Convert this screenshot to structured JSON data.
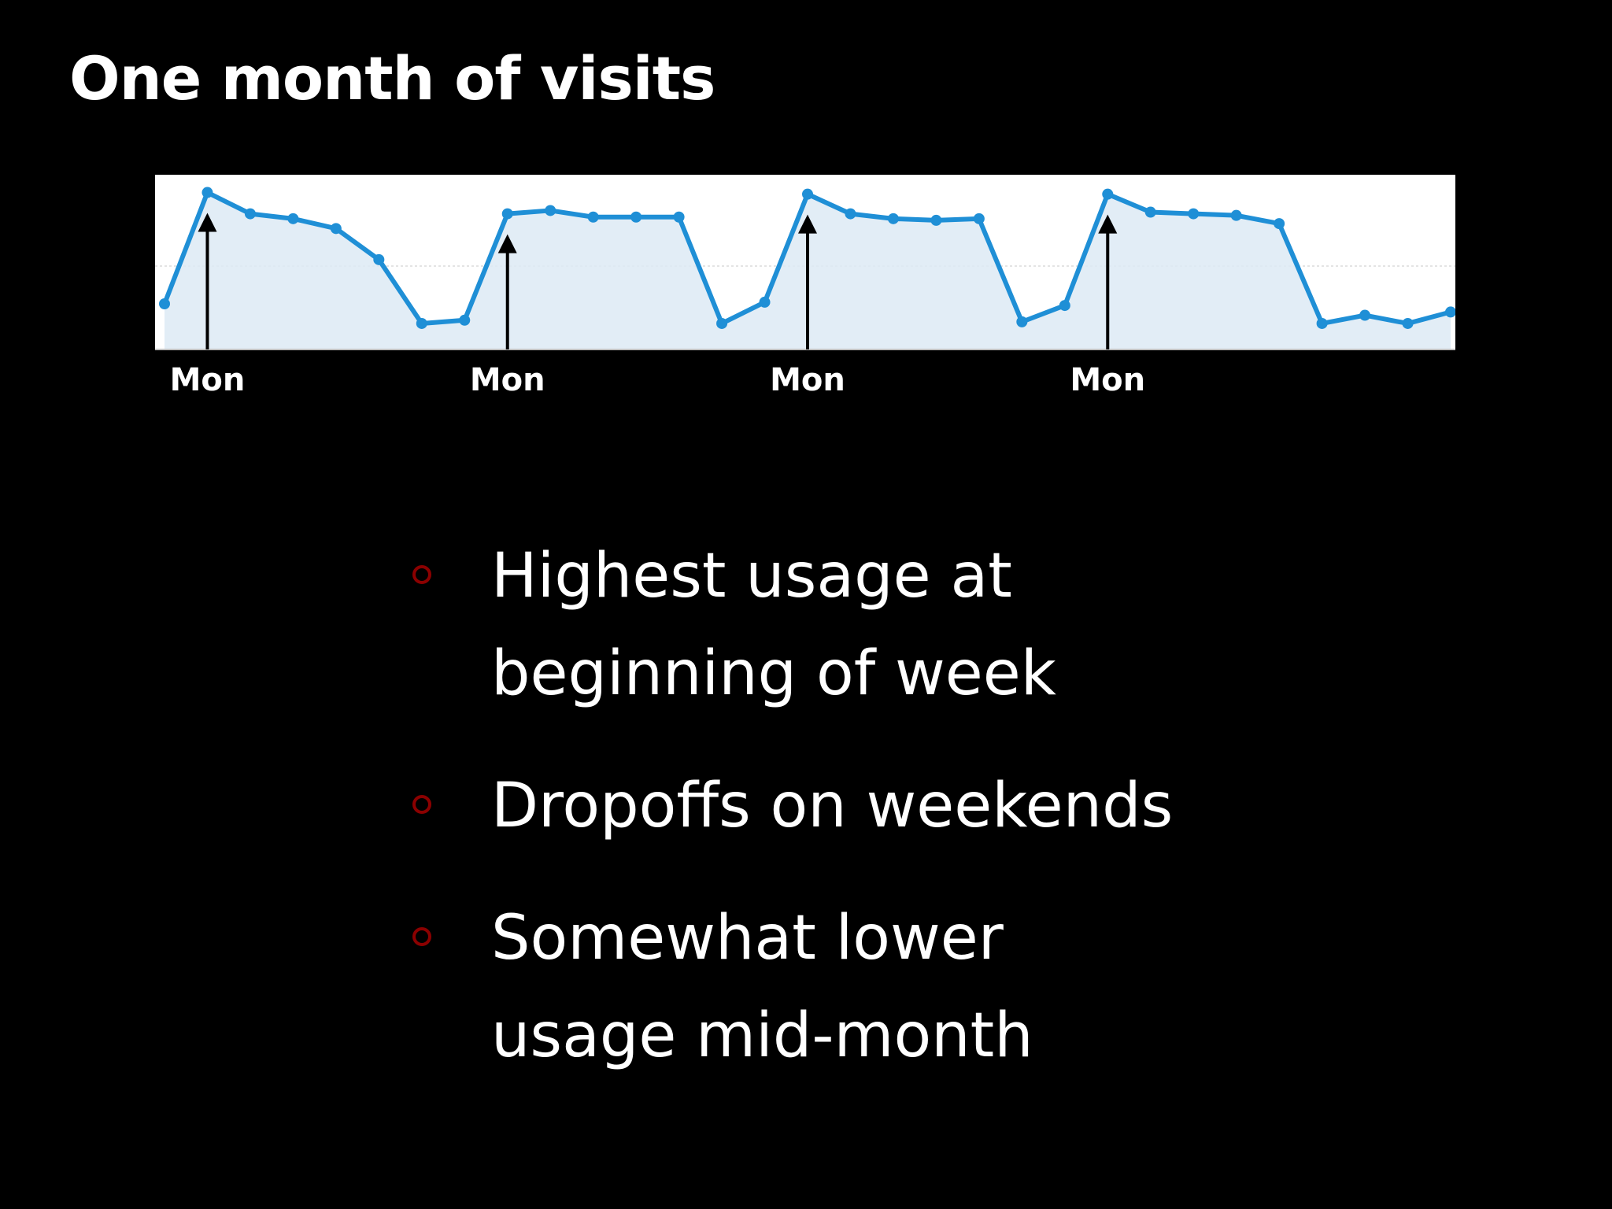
{
  "slide": {
    "title": "One month of visits"
  },
  "colors": {
    "background": "#000000",
    "text": "#ffffff",
    "line": "#1f8fd6",
    "area_fill": "#ddeaf5",
    "plot_background": "#ffffff",
    "arrow": "#000000",
    "bullet_marker": "#8b0000"
  },
  "chart_data": {
    "type": "area",
    "title": "",
    "xlabel": "",
    "ylabel": "",
    "grid": true,
    "ylim": [
      0,
      100
    ],
    "x": [
      1,
      2,
      3,
      4,
      5,
      6,
      7,
      8,
      9,
      10,
      11,
      12,
      13,
      14,
      15,
      16,
      17,
      18,
      19,
      20,
      21,
      22,
      23,
      24,
      25,
      26,
      27,
      28,
      29,
      30,
      31
    ],
    "series": [
      {
        "values": [
          25,
          93,
          80,
          77,
          71,
          52,
          13,
          15,
          80,
          82,
          78,
          78,
          78,
          13,
          26,
          92,
          80,
          77,
          76,
          77,
          14,
          24,
          92,
          81,
          80,
          79,
          74,
          13,
          18,
          13,
          20
        ]
      }
    ],
    "annotations": [
      {
        "label": "Mon",
        "x": 2,
        "marker": "arrow"
      },
      {
        "label": "Mon",
        "x": 9,
        "marker": "arrow"
      },
      {
        "label": "Mon",
        "x": 16,
        "marker": "arrow"
      },
      {
        "label": "Mon",
        "x": 23,
        "marker": "arrow"
      }
    ]
  },
  "bullets": [
    {
      "text": "Highest usage at\nbeginning of week"
    },
    {
      "text": "Dropoffs on weekends"
    },
    {
      "text": "Somewhat lower\nusage mid-month"
    }
  ]
}
